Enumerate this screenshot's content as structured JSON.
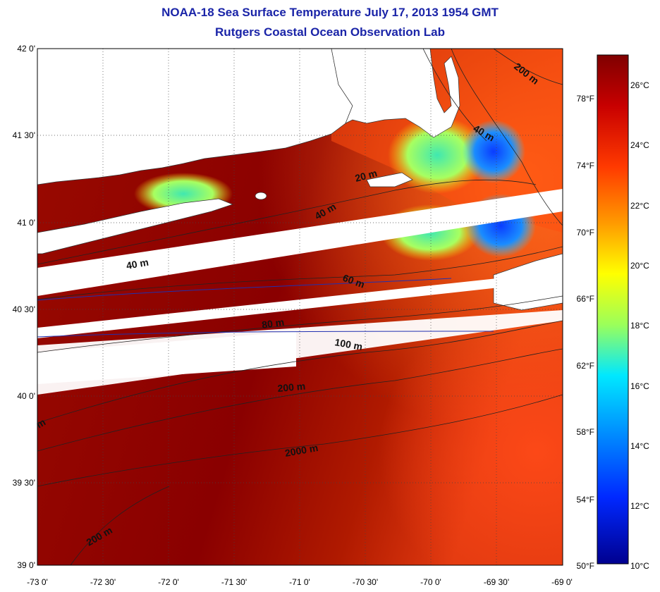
{
  "title": "NOAA-18 Sea Surface Temperature July 17, 2013 1954 GMT",
  "subtitle": "Rutgers Coastal Ocean Observation Lab",
  "lat_labels": [
    "42 0'",
    "41 30'",
    "41 0'",
    "40 30'",
    "40 0'",
    "39 30'",
    "39 0'"
  ],
  "lon_labels": [
    "-73 0'",
    "-72 30'",
    "-72 0'",
    "-71 30'",
    "-71 0'",
    "-70 30'",
    "-70 0'",
    "-69 30'",
    "-69 0'"
  ],
  "colorbar": {
    "celsius": [
      "26°C",
      "24°C",
      "22°C",
      "20°C",
      "18°C",
      "16°C",
      "14°C",
      "12°C",
      "10°C"
    ],
    "fahrenheit": [
      "78°F",
      "74°F",
      "70°F",
      "66°F",
      "62°F",
      "58°F",
      "54°F",
      "50°F"
    ],
    "colors": [
      "#7f0000",
      "#c80000",
      "#ff3a00",
      "#ff9a00",
      "#ffff00",
      "#9bff5a",
      "#00e8ff",
      "#0090ff",
      "#0028ff",
      "#00008f"
    ]
  },
  "contours": [
    "200 m",
    "40 m",
    "20 m",
    "40 m",
    "40 m",
    "60 m",
    "80 m",
    "100 m",
    "200 m",
    "2000 m",
    "200 m",
    "m"
  ],
  "colors": {
    "title": "#1a24a8",
    "deep_red": "#8b0000",
    "white_gap": "#ffffff"
  }
}
